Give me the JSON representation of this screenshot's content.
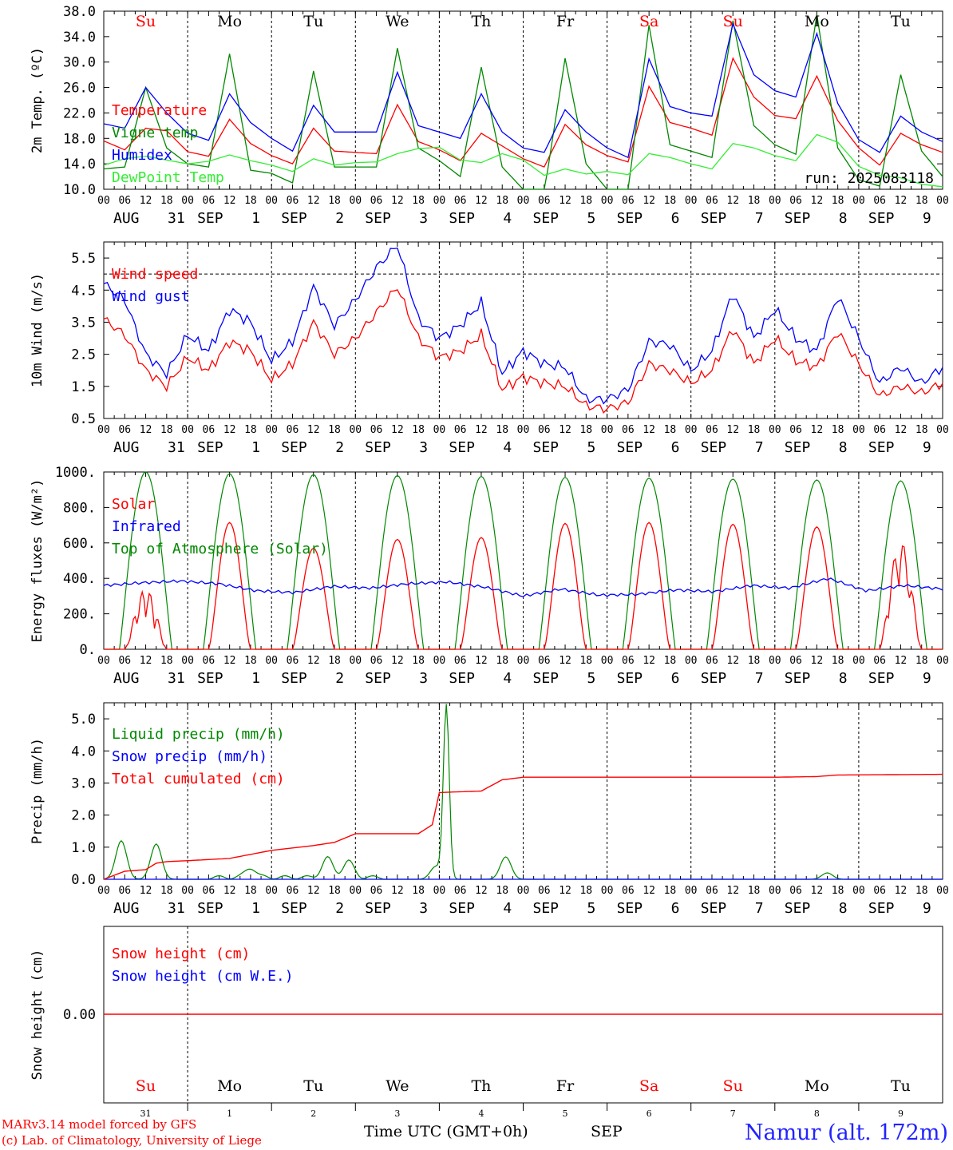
{
  "chart_data": [
    {
      "type": "line",
      "ylabel": "2m Temp. (ºC)",
      "ylim": [
        10.0,
        38.0
      ],
      "yticks": [
        "10.0",
        "14.0",
        "18.0",
        "22.0",
        "26.0",
        "30.0",
        "34.0",
        "38.0"
      ],
      "annotation": "run: 2025083118",
      "day_labels": [
        "Su",
        "Mo",
        "Tu",
        "We",
        "Th",
        "Fr",
        "Sa",
        "Su",
        "Mo",
        "Tu"
      ],
      "x_hours": [
        0,
        6,
        12,
        18,
        24,
        30,
        36,
        42,
        48,
        54,
        60,
        66,
        72,
        78,
        84,
        90,
        96,
        102,
        108,
        114,
        120,
        126,
        132,
        138,
        144,
        150,
        156,
        162,
        168,
        174,
        180,
        186,
        192,
        198,
        204,
        210,
        216,
        222,
        228,
        234,
        240
      ],
      "series": [
        {
          "name": "Temperature",
          "color": "#ff0000",
          "values": [
            17.6,
            16.2,
            19.6,
            19.2,
            15.9,
            15.2,
            21.0,
            17.2,
            15.3,
            14.0,
            19.6,
            16.0,
            15.8,
            15.6,
            23.3,
            17.5,
            16.2,
            14.5,
            18.8,
            16.8,
            14.8,
            13.5,
            20.2,
            17.0,
            15.3,
            14.3,
            26.2,
            20.5,
            19.6,
            18.5,
            30.6,
            24.5,
            21.6,
            21.1,
            27.8,
            20.8,
            16.5,
            13.8,
            18.8,
            17.0,
            15.8
          ]
        },
        {
          "name": "Vigne temp",
          "color": "#008800",
          "values": [
            13.2,
            13.5,
            26.0,
            16.5,
            14.0,
            13.5,
            31.3,
            13.0,
            12.5,
            11.0,
            28.6,
            13.5,
            13.5,
            13.5,
            32.2,
            16.5,
            14.5,
            12.0,
            29.2,
            13.5,
            10.0,
            9.5,
            30.6,
            14.0,
            10.0,
            9.8,
            35.8,
            17.0,
            16.0,
            15.0,
            36.5,
            20.0,
            17.0,
            15.5,
            37.5,
            16.5,
            11.5,
            10.5,
            28.0,
            16.0,
            12.0
          ]
        },
        {
          "name": "Humidex",
          "color": "#0000ff",
          "values": [
            20.3,
            19.6,
            26.0,
            22.0,
            18.8,
            17.7,
            25.0,
            20.5,
            18.0,
            16.0,
            23.2,
            19.0,
            19.0,
            19.0,
            28.4,
            20.0,
            19.0,
            18.0,
            25.0,
            19.0,
            16.5,
            15.8,
            22.5,
            19.0,
            16.5,
            15.0,
            30.5,
            23.0,
            22.0,
            21.5,
            36.0,
            28.0,
            25.5,
            24.5,
            34.5,
            23.5,
            17.8,
            15.8,
            21.5,
            19.0,
            17.5
          ]
        },
        {
          "name": "DewPoint Temp",
          "color": "#33ee33",
          "values": [
            13.8,
            14.8,
            15.2,
            14.6,
            14.0,
            14.4,
            15.4,
            14.5,
            13.8,
            12.8,
            14.8,
            13.8,
            14.2,
            14.3,
            15.6,
            16.4,
            16.6,
            14.6,
            14.2,
            15.6,
            14.6,
            12.2,
            13.2,
            12.4,
            12.8,
            12.3,
            15.6,
            15.0,
            14.0,
            13.2,
            17.2,
            16.5,
            15.3,
            14.5,
            18.6,
            17.4,
            13.6,
            12.2,
            11.8,
            10.8,
            10.4
          ]
        }
      ]
    },
    {
      "type": "line",
      "ylabel": "10m Wind (m/s)",
      "ylim": [
        0.5,
        6.0
      ],
      "yticks": [
        "0.5",
        "1.5",
        "2.5",
        "3.5",
        "4.5",
        "5.5"
      ],
      "reference_line": 5.0,
      "x_hours": [
        0,
        6,
        12,
        18,
        24,
        30,
        36,
        42,
        48,
        54,
        60,
        66,
        72,
        78,
        84,
        90,
        96,
        102,
        108,
        114,
        120,
        126,
        132,
        138,
        144,
        150,
        156,
        162,
        168,
        174,
        180,
        186,
        192,
        198,
        204,
        210,
        216,
        222,
        228,
        234,
        240
      ],
      "series": [
        {
          "name": "Wind speed",
          "color": "#ff0000",
          "values": [
            3.6,
            3.1,
            2.0,
            1.5,
            2.4,
            2.0,
            2.9,
            2.6,
            1.7,
            2.2,
            3.5,
            2.5,
            3.0,
            3.8,
            4.6,
            3.0,
            2.4,
            2.6,
            3.1,
            1.4,
            1.8,
            1.6,
            1.5,
            0.9,
            0.8,
            1.0,
            2.2,
            2.0,
            1.6,
            2.0,
            3.3,
            2.2,
            3.0,
            2.3,
            2.1,
            3.2,
            2.2,
            1.2,
            1.5,
            1.3,
            1.6
          ]
        },
        {
          "name": "Wind gust",
          "color": "#0000ff",
          "values": [
            4.7,
            4.2,
            2.5,
            1.9,
            3.1,
            2.6,
            3.9,
            3.5,
            2.3,
            2.9,
            4.6,
            3.4,
            4.2,
            5.2,
            5.9,
            3.6,
            3.0,
            3.4,
            4.1,
            1.9,
            2.6,
            2.2,
            2.1,
            1.1,
            1.1,
            1.4,
            2.9,
            2.8,
            2.0,
            2.6,
            4.4,
            3.0,
            3.9,
            3.0,
            2.6,
            4.3,
            3.0,
            1.6,
            2.1,
            1.6,
            2.1
          ]
        }
      ]
    },
    {
      "type": "line",
      "ylabel": "Energy fluxes (W/m²)",
      "ylim": [
        0,
        1000
      ],
      "yticks": [
        "0.",
        "200.",
        "400.",
        "600.",
        "800.",
        "1000."
      ],
      "series": [
        {
          "name": "Solar",
          "color": "#ff0000",
          "peaks": [
            360,
            715,
            570,
            620,
            630,
            710,
            715,
            705,
            690,
            610
          ]
        },
        {
          "name": "Infrared",
          "color": "#0000ff",
          "values": [
            360,
            375,
            385,
            370,
            330,
            320,
            355,
            345,
            370,
            380,
            350,
            300,
            340,
            305,
            310,
            335,
            325,
            360,
            345,
            400,
            330,
            360,
            340
          ]
        },
        {
          "name": "Top of Atmosphere (Solar)",
          "color": "#008800",
          "peaks": [
            1000,
            990,
            985,
            980,
            975,
            970,
            965,
            960,
            955,
            950
          ]
        }
      ]
    },
    {
      "type": "line",
      "ylabel": "Precip (mm/h)",
      "ylim": [
        0.0,
        5.5
      ],
      "yticks": [
        "0.0",
        "1.0",
        "2.0",
        "3.0",
        "4.0",
        "5.0"
      ],
      "series": [
        {
          "name": "Liquid precip (mm/h)",
          "color": "#008800",
          "events": [
            [
              5,
              1.2
            ],
            [
              15,
              1.1
            ],
            [
              42,
              0.3
            ],
            [
              64,
              0.6
            ],
            [
              70,
              0.5
            ],
            [
              95,
              0.4
            ],
            [
              98,
              5.4
            ],
            [
              115,
              0.7
            ],
            [
              207,
              0.2
            ]
          ]
        },
        {
          "name": "Snow precip (mm/h)",
          "color": "#0000ff",
          "values": []
        },
        {
          "name": "Total cumulated (cm)",
          "color": "#ff0000",
          "x_hours": [
            0,
            6,
            12,
            15,
            18,
            24,
            36,
            48,
            60,
            66,
            72,
            90,
            94,
            96,
            100,
            108,
            114,
            120,
            144,
            168,
            192,
            204,
            210,
            240
          ],
          "values": [
            0,
            0.25,
            0.3,
            0.5,
            0.55,
            0.58,
            0.65,
            0.9,
            1.05,
            1.15,
            1.42,
            1.42,
            1.7,
            2.7,
            2.72,
            2.75,
            3.1,
            3.18,
            3.18,
            3.18,
            3.18,
            3.2,
            3.25,
            3.27
          ]
        }
      ]
    },
    {
      "type": "line",
      "ylabel": "Snow height (cm)",
      "yticks": [
        "0.00"
      ],
      "series": [
        {
          "name": "Snow height (cm)",
          "color": "#ff0000",
          "values": [
            0.0,
            0.0
          ]
        },
        {
          "name": "Snow height (cm W.E.)",
          "color": "#0000ff",
          "values": [
            0.0,
            0.0
          ]
        }
      ]
    }
  ],
  "x_axis": {
    "hour_ticks": [
      "00",
      "06",
      "12",
      "18"
    ],
    "final_tick": "00",
    "months": [
      "AUG",
      "SEP",
      "SEP",
      "SEP",
      "SEP",
      "SEP",
      "SEP",
      "SEP",
      "SEP",
      "SEP"
    ],
    "days": [
      "31",
      "1",
      "2",
      "3",
      "4",
      "5",
      "6",
      "7",
      "8",
      "9"
    ]
  },
  "day_names": [
    "Su",
    "Mo",
    "Tu",
    "We",
    "Th",
    "Fr",
    "Sa",
    "Su",
    "Mo",
    "Tu"
  ],
  "weekend_color": "#ff0000",
  "footer": {
    "model_line": "MARv3.14 model forced by GFS",
    "lab_line": "(c) Lab. of Climatology, University of Liege",
    "axis_title": "Time UTC (GMT+0h)",
    "month": "SEP",
    "station": "Namur (alt. 172m)"
  }
}
